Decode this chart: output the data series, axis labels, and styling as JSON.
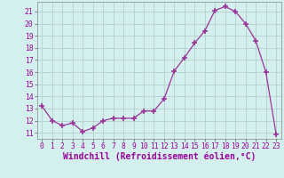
{
  "x": [
    0,
    1,
    2,
    3,
    4,
    5,
    6,
    7,
    8,
    9,
    10,
    11,
    12,
    13,
    14,
    15,
    16,
    17,
    18,
    19,
    20,
    21,
    22,
    23
  ],
  "y": [
    13.2,
    12.0,
    11.6,
    11.8,
    11.1,
    11.4,
    12.0,
    12.2,
    12.2,
    12.2,
    12.8,
    12.8,
    13.8,
    16.1,
    17.2,
    18.4,
    19.4,
    21.1,
    21.4,
    21.0,
    20.0,
    18.6,
    16.0,
    10.9
  ],
  "xlabel": "Windchill (Refroidissement éolien,°C)",
  "line_color": "#993399",
  "marker_color": "#993399",
  "bg_color": "#d4f0ee",
  "grid_color": "#b0c8c8",
  "ylim": [
    10.5,
    21.8
  ],
  "xlim": [
    -0.5,
    23.5
  ],
  "yticks": [
    11,
    12,
    13,
    14,
    15,
    16,
    17,
    18,
    19,
    20,
    21
  ],
  "xticks": [
    0,
    1,
    2,
    3,
    4,
    5,
    6,
    7,
    8,
    9,
    10,
    11,
    12,
    13,
    14,
    15,
    16,
    17,
    18,
    19,
    20,
    21,
    22,
    23
  ],
  "tick_label_size": 5.8,
  "xlabel_size": 7.0
}
